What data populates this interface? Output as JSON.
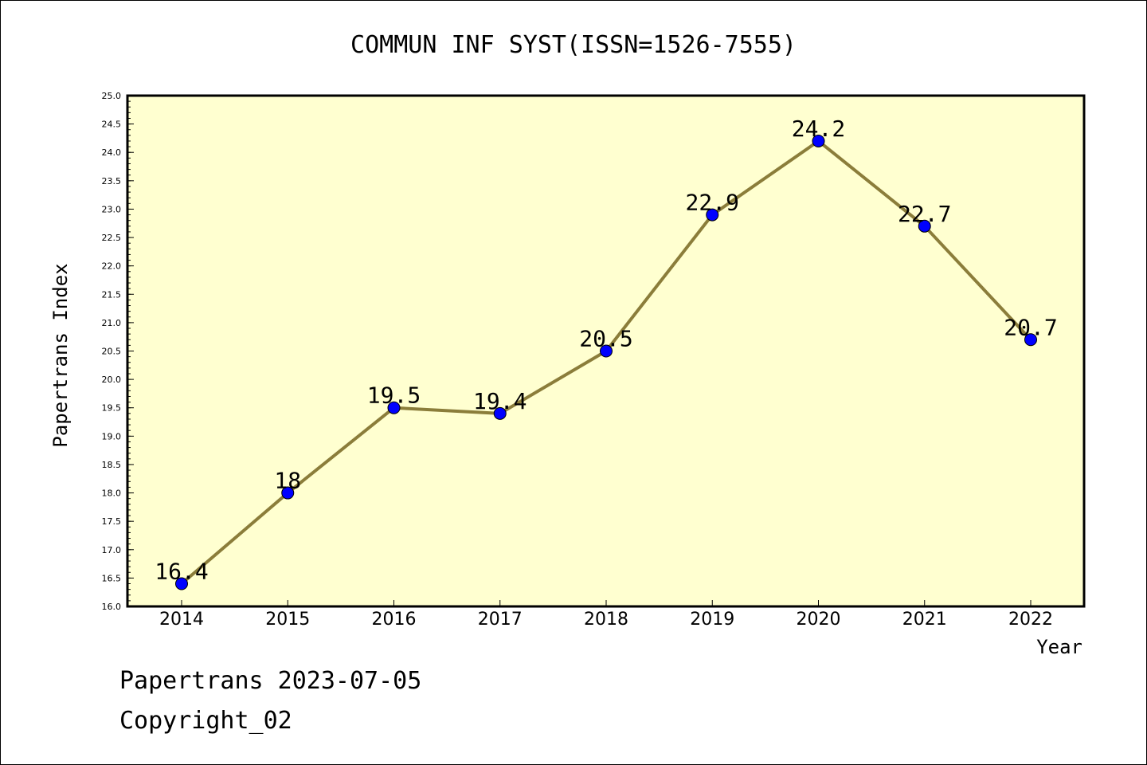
{
  "chart_data": {
    "type": "line",
    "title": "COMMUN INF SYST(ISSN=1526-7555)",
    "xlabel": "Year",
    "ylabel": "Papertrans Index",
    "categories": [
      "2014",
      "2015",
      "2016",
      "2017",
      "2018",
      "2019",
      "2020",
      "2021",
      "2022"
    ],
    "values": [
      16.4,
      18,
      19.5,
      19.4,
      20.5,
      22.9,
      24.2,
      22.7,
      20.7
    ],
    "data_labels": [
      "16.4",
      "18",
      "19.5",
      "19.4",
      "20.5",
      "22.9",
      "24.2",
      "22.7",
      "20.7"
    ],
    "ylim": [
      16.0,
      25.0
    ],
    "y_ticks": [
      "16.0",
      "16.5",
      "17.0",
      "17.5",
      "18.0",
      "18.5",
      "19.0",
      "19.5",
      "20.0",
      "20.5",
      "21.0",
      "21.5",
      "22.0",
      "22.5",
      "23.0",
      "23.5",
      "24.0",
      "24.5",
      "25.0"
    ],
    "grid": false,
    "colors": {
      "plot_background": "#ffffd0",
      "line": "#8b7d3a",
      "marker": "#0000ff"
    }
  },
  "footer": {
    "line1": "Papertrans 2023-07-05",
    "line2": "Copyright_02"
  }
}
